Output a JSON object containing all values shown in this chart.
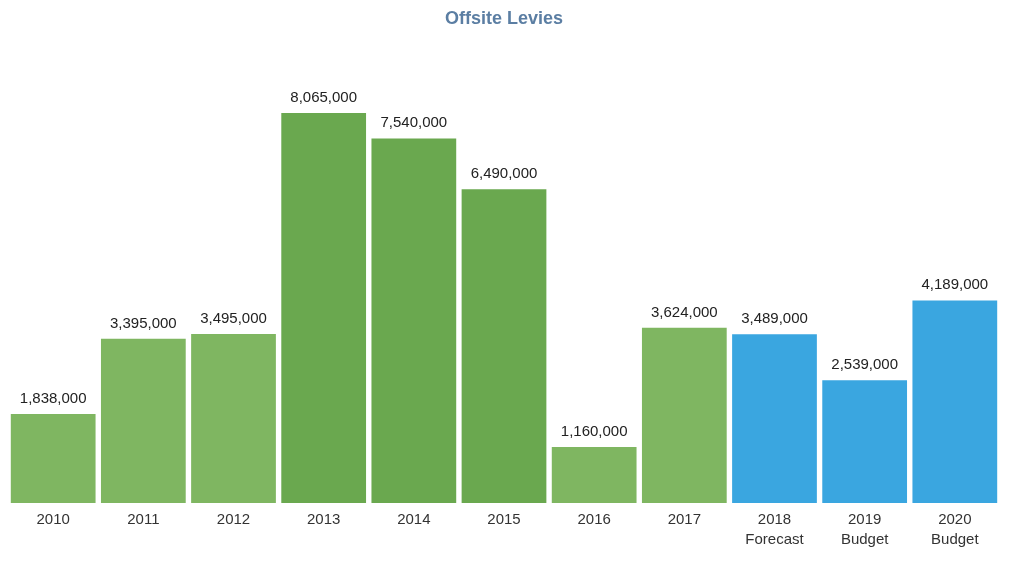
{
  "chart_data": {
    "type": "bar",
    "title": "Offsite Levies",
    "categories": [
      "2010",
      "2011",
      "2012",
      "2013",
      "2014",
      "2015",
      "2016",
      "2017",
      "2018\nForecast",
      "2019\nBudget",
      "2020\nBudget"
    ],
    "values": [
      1838000,
      3395000,
      3495000,
      8065000,
      7540000,
      6490000,
      1160000,
      3624000,
      3489000,
      2539000,
      4189000
    ],
    "colors": [
      "#7fb661",
      "#7fb661",
      "#7fb661",
      "#6aa84f",
      "#6aa84f",
      "#6aa84f",
      "#7fb661",
      "#7fb661",
      "#3aa6e0",
      "#3aa6e0",
      "#3aa6e0"
    ],
    "value_labels": [
      "1,838,000",
      "3,395,000",
      "3,495,000",
      "8,065,000",
      "7,540,000",
      "6,490,000",
      "1,160,000",
      "3,624,000",
      "3,489,000",
      "2,539,000",
      "4,189,000"
    ],
    "legend": false
  }
}
